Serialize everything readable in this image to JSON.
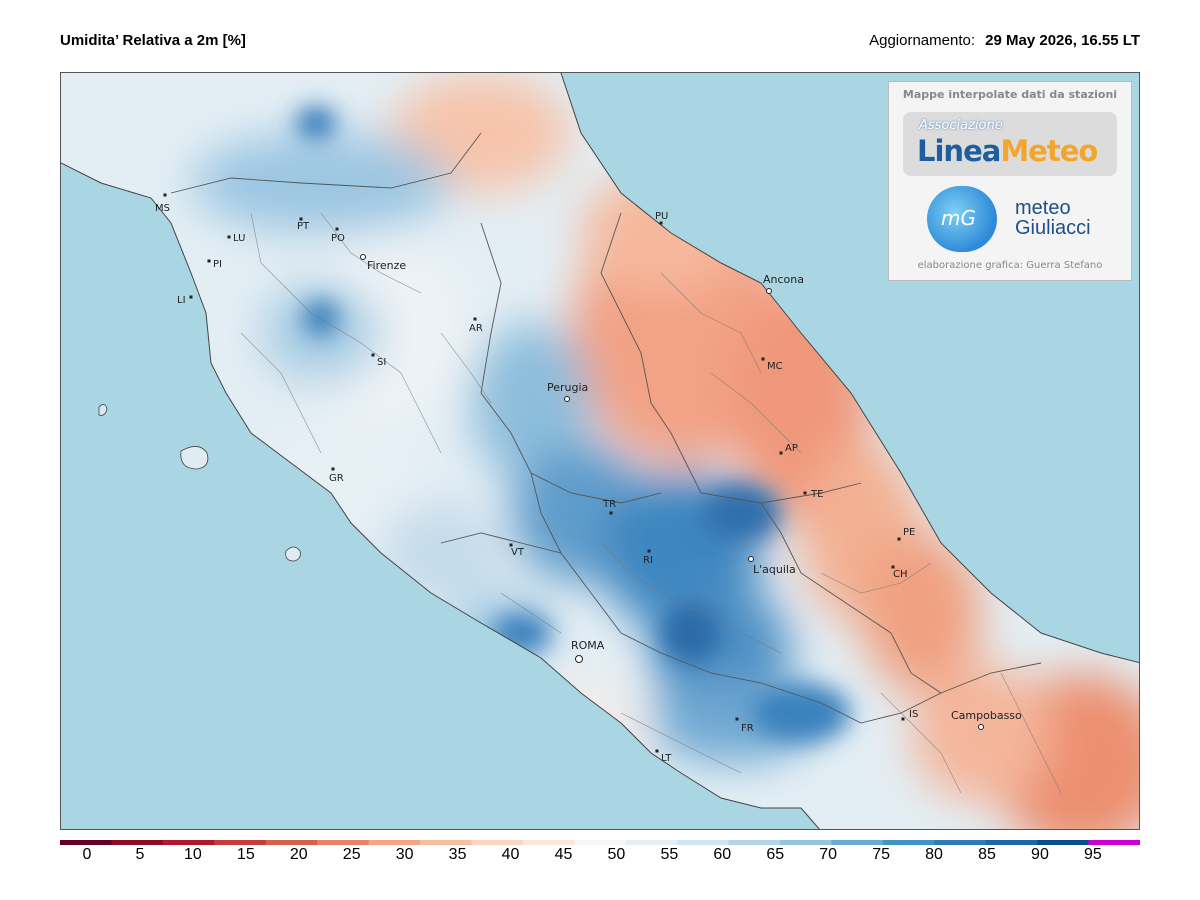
{
  "header": {
    "title": "Umidita’ Relativa a 2m [%]",
    "updated_label": "Aggiornamento:",
    "updated_value": "29 May 2026, 16.55 LT"
  },
  "logo_box": {
    "heading": "Mappe interpolate dati da stazioni",
    "association_label": "Associazione",
    "linea_part1": "Linea",
    "linea_part2": "Meteo",
    "mg_monogram": "mG",
    "mg_line1": "meteo",
    "mg_line2": "Giuliacci",
    "credit": "elaborazione grafica: Guerra Stefano"
  },
  "cities": [
    {
      "label": "MS",
      "major": false
    },
    {
      "label": "LU",
      "major": false
    },
    {
      "label": "PI",
      "major": false
    },
    {
      "label": "LI",
      "major": false
    },
    {
      "label": "PT",
      "major": false
    },
    {
      "label": "PO",
      "major": false
    },
    {
      "label": "Firenze",
      "major": true
    },
    {
      "label": "AR",
      "major": false
    },
    {
      "label": "SI",
      "major": false
    },
    {
      "label": "GR",
      "major": false
    },
    {
      "label": "PU",
      "major": false
    },
    {
      "label": "Ancona",
      "major": true
    },
    {
      "label": "MC",
      "major": false
    },
    {
      "label": "Perugia",
      "major": true
    },
    {
      "label": "AP",
      "major": false
    },
    {
      "label": "TE",
      "major": false
    },
    {
      "label": "TR",
      "major": false
    },
    {
      "label": "PE",
      "major": false
    },
    {
      "label": "VT",
      "major": false
    },
    {
      "label": "RI",
      "major": false
    },
    {
      "label": "L'aquila",
      "major": true
    },
    {
      "label": "CH",
      "major": false
    },
    {
      "label": "ROMA",
      "major": true
    },
    {
      "label": "IS",
      "major": false
    },
    {
      "label": "Campobasso",
      "major": true
    },
    {
      "label": "FR",
      "major": false
    },
    {
      "label": "LT",
      "major": false
    }
  ],
  "color_scale": {
    "ticks": [
      "0",
      "5",
      "10",
      "15",
      "20",
      "25",
      "30",
      "35",
      "40",
      "45",
      "50",
      "55",
      "60",
      "65",
      "70",
      "75",
      "80",
      "85",
      "90",
      "95"
    ],
    "colors": [
      "#67001f",
      "#8e0d26",
      "#b2182b",
      "#c43c3c",
      "#d6604d",
      "#e58267",
      "#f4a582",
      "#f7bfa0",
      "#fbd5c0",
      "#fde6d9",
      "#f7f7f7",
      "#e4eef4",
      "#d1e5f0",
      "#b4d5e8",
      "#92c5de",
      "#6aa9d0",
      "#4393c3",
      "#3179b5",
      "#2166ac",
      "#0d4c8c",
      "#cc00cc"
    ]
  }
}
